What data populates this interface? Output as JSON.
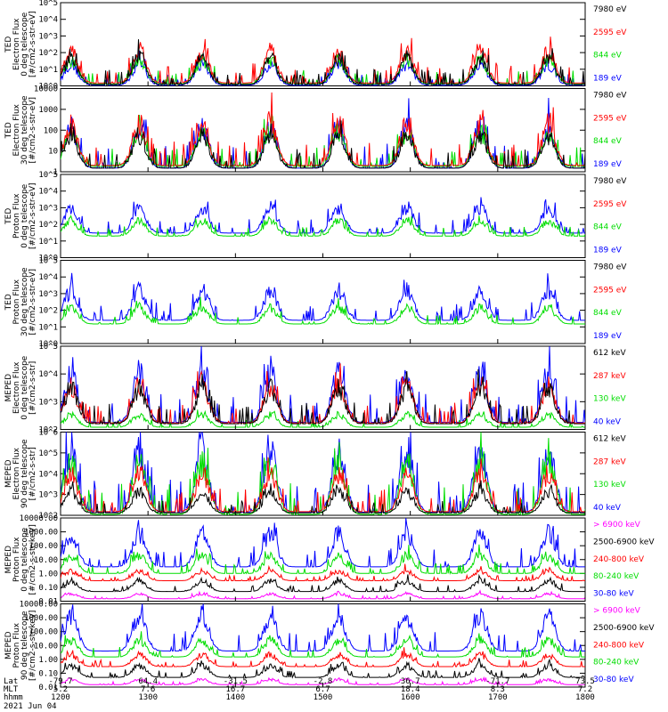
{
  "chart_data": [
    {
      "type": "line",
      "ylabel": [
        "TED",
        "Electron Flux",
        "0 deg telescope",
        "[#/cm2-s-str-eV]"
      ],
      "yscale": "log",
      "yticks": [
        "10^0",
        "10^1",
        "10^2",
        "10^3",
        "10^4",
        "10^5"
      ],
      "ylim": [
        1,
        100000
      ],
      "series": [
        {
          "name": "7980 eV",
          "color": "#000000",
          "quiet": 1.2,
          "burst": 80
        },
        {
          "name": "2595 eV",
          "color": "#ff0000",
          "quiet": 1.5,
          "burst": 250
        },
        {
          "name": "844 eV",
          "color": "#00dd00",
          "quiet": 1.3,
          "burst": 60
        },
        {
          "name": "189 eV",
          "color": "#0000ff",
          "quiet": 1.1,
          "burst": 30
        }
      ]
    },
    {
      "type": "line",
      "ylabel": [
        "TED",
        "Electron Flux",
        "30 deg telescope",
        "[#/cm2-s-str-eV]"
      ],
      "yscale": "log",
      "yticks": [
        "1",
        "10",
        "100",
        "1000",
        "10000"
      ],
      "ylim": [
        1,
        10000
      ],
      "series": [
        {
          "name": "7980 eV",
          "color": "#000000",
          "quiet": 1.5,
          "burst": 100
        },
        {
          "name": "2595 eV",
          "color": "#ff0000",
          "quiet": 2,
          "burst": 400
        },
        {
          "name": "844 eV",
          "color": "#00dd00",
          "quiet": 1.8,
          "burst": 150
        },
        {
          "name": "189 eV",
          "color": "#0000ff",
          "quiet": 1.5,
          "burst": 300
        }
      ]
    },
    {
      "type": "line",
      "ylabel": [
        "TED",
        "Proton Flux",
        "0 deg telescope",
        "[#/cm2-s-str-eV]"
      ],
      "yscale": "log",
      "yticks": [
        "10^0",
        "10^1",
        "10^2",
        "10^3",
        "10^4",
        "10^5"
      ],
      "ylim": [
        1,
        100000
      ],
      "series": [
        {
          "name": "7980 eV",
          "color": "#000000",
          "quiet": 1,
          "burst": 1
        },
        {
          "name": "2595 eV",
          "color": "#ff0000",
          "quiet": 1,
          "burst": 1
        },
        {
          "name": "844 eV",
          "color": "#00dd00",
          "quiet": 20,
          "burst": 250
        },
        {
          "name": "189 eV",
          "color": "#0000ff",
          "quiet": 30,
          "burst": 2000
        }
      ]
    },
    {
      "type": "line",
      "ylabel": [
        "TED",
        "Proton Flux",
        "30 deg telescope",
        "[#/cm2-s-str-eV]"
      ],
      "yscale": "log",
      "yticks": [
        "10^0",
        "10^1",
        "10^2",
        "10^3",
        "10^4",
        "10^5"
      ],
      "ylim": [
        1,
        100000
      ],
      "series": [
        {
          "name": "7980 eV",
          "color": "#000000",
          "quiet": 1,
          "burst": 1
        },
        {
          "name": "2595 eV",
          "color": "#ff0000",
          "quiet": 1,
          "burst": 1
        },
        {
          "name": "844 eV",
          "color": "#00dd00",
          "quiet": 15,
          "burst": 200
        },
        {
          "name": "189 eV",
          "color": "#0000ff",
          "quiet": 25,
          "burst": 3000
        }
      ]
    },
    {
      "type": "line",
      "ylabel": [
        "MEPED",
        "Electron Flux",
        "0 deg telescope",
        "[#/cm2-s-str]"
      ],
      "yscale": "log",
      "yticks": [
        "10^2",
        "10^3",
        "10^4",
        "10^5"
      ],
      "ylim": [
        100,
        100000
      ],
      "series": [
        {
          "name": "612 keV",
          "color": "#000000",
          "quiet": 160,
          "burst": 5000
        },
        {
          "name": "287 keV",
          "color": "#ff0000",
          "quiet": 170,
          "burst": 6000
        },
        {
          "name": "130 keV",
          "color": "#00dd00",
          "quiet": 120,
          "burst": 400
        },
        {
          "name": "40 keV",
          "color": "#0000ff",
          "quiet": 180,
          "burst": 20000
        }
      ]
    },
    {
      "type": "line",
      "ylabel": [
        "MEPED",
        "Electron Flux",
        "90 deg telescope",
        "[#/cm2-s-str]"
      ],
      "yscale": "log",
      "yticks": [
        "10^2",
        "10^3",
        "10^4",
        "10^5",
        "10^6"
      ],
      "ylim": [
        100,
        1000000
      ],
      "series": [
        {
          "name": "612 keV",
          "color": "#000000",
          "quiet": 130,
          "burst": 2000
        },
        {
          "name": "287 keV",
          "color": "#ff0000",
          "quiet": 150,
          "burst": 20000
        },
        {
          "name": "130 keV",
          "color": "#00dd00",
          "quiet": 110,
          "burst": 100000
        },
        {
          "name": "40 keV",
          "color": "#0000ff",
          "quiet": 140,
          "burst": 300000
        }
      ]
    },
    {
      "type": "line",
      "ylabel": [
        "MEPED",
        "Proton Flux",
        "0 deg telescope",
        "[#/cm2-s-str-keV]"
      ],
      "yscale": "log",
      "yticks": [
        "0.01",
        "0.10",
        "1.00",
        "10.00",
        "100.00",
        "1000.00",
        "10000.00"
      ],
      "ylim": [
        0.01,
        10000
      ],
      "series": [
        {
          "name": "> 6900 keV",
          "color": "#ff00ff",
          "quiet": 0.015,
          "burst": 0.04
        },
        {
          "name": "2500-6900 keV",
          "color": "#000000",
          "quiet": 0.05,
          "burst": 0.4
        },
        {
          "name": "240-800 keV",
          "color": "#ff0000",
          "quiet": 0.3,
          "burst": 2
        },
        {
          "name": "80-240 keV",
          "color": "#00dd00",
          "quiet": 1,
          "burst": 30
        },
        {
          "name": "30-80 keV",
          "color": "#0000ff",
          "quiet": 3,
          "burst": 2000
        }
      ]
    },
    {
      "type": "line",
      "ylabel": [
        "MEPED",
        "Proton Flux",
        "90 deg telescope",
        "[#/cm2-s-str-keV]"
      ],
      "yscale": "log",
      "yticks": [
        "0.01",
        "0.10",
        "1.00",
        "10.00",
        "100.00",
        "1000.00",
        "10000.00"
      ],
      "ylim": [
        0.01,
        10000
      ],
      "series": [
        {
          "name": "> 6900 keV",
          "color": "#ff00ff",
          "quiet": 0.015,
          "burst": 0.04
        },
        {
          "name": "2500-6900 keV",
          "color": "#000000",
          "quiet": 0.05,
          "burst": 0.5
        },
        {
          "name": "240-800 keV",
          "color": "#ff0000",
          "quiet": 0.3,
          "burst": 3
        },
        {
          "name": "80-240 keV",
          "color": "#00dd00",
          "quiet": 1.5,
          "burst": 40
        },
        {
          "name": "30-80 keV",
          "color": "#0000ff",
          "quiet": 4,
          "burst": 3000
        }
      ]
    }
  ],
  "xaxis": {
    "row_labels": [
      "Lat",
      "MLT",
      "hhmm"
    ],
    "date": "2021 Jun 04",
    "ticks": [
      {
        "lat": "-79.7",
        "mlt": "5.2",
        "hhmm": "1200"
      },
      {
        "lat": "64.4",
        "mlt": "7.6",
        "hhmm": "1300"
      },
      {
        "lat": "-31.5",
        "mlt": "16.7",
        "hhmm": "1400"
      },
      {
        "lat": "-2.8",
        "mlt": "6.7",
        "hhmm": "1500"
      },
      {
        "lat": "36.7",
        "mlt": "18.4",
        "hhmm": "1600"
      },
      {
        "lat": "-71.7",
        "mlt": "8.3",
        "hhmm": "1700"
      },
      {
        "lat": "73.5",
        "mlt": "7.2",
        "hhmm": "1800"
      }
    ]
  }
}
